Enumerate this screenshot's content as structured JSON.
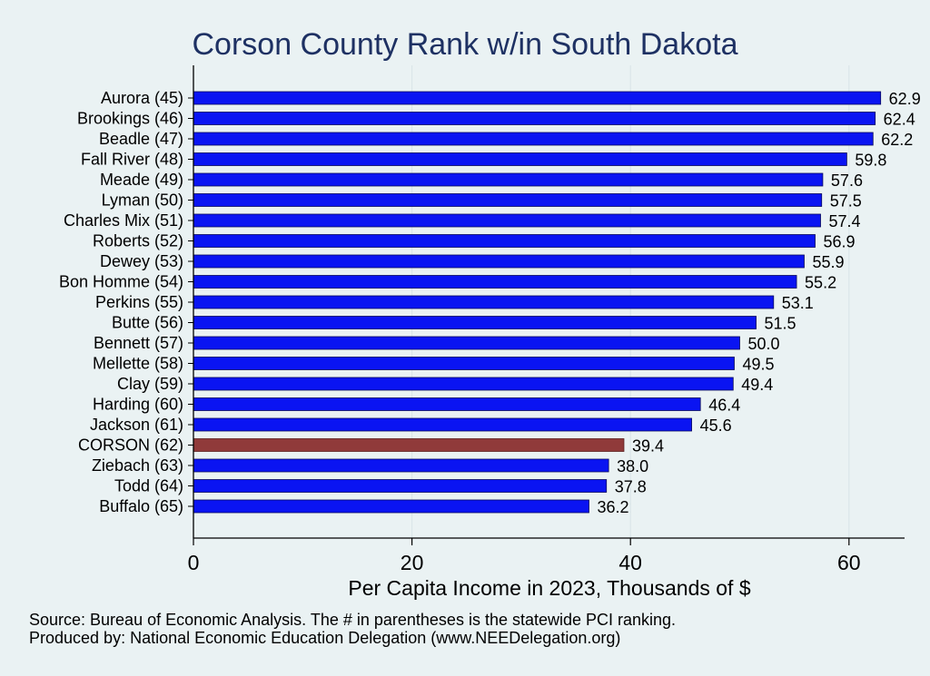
{
  "chart_data": {
    "type": "bar",
    "orientation": "horizontal",
    "title": "Corson County Rank w/in South Dakota",
    "xlabel": "Per Capita Income in 2023, Thousands of $",
    "ylabel": "",
    "xlim": [
      0,
      65
    ],
    "x_ticks": [
      0,
      20,
      40,
      60
    ],
    "grid": true,
    "categories": [
      "Aurora (45)",
      "Brookings (46)",
      "Beadle (47)",
      "Fall River (48)",
      "Meade (49)",
      "Lyman (50)",
      "Charles Mix (51)",
      "Roberts (52)",
      "Dewey (53)",
      "Bon Homme (54)",
      "Perkins (55)",
      "Butte (56)",
      "Bennett (57)",
      "Mellette (58)",
      "Clay (59)",
      "Harding (60)",
      "Jackson (61)",
      "CORSON (62)",
      "Ziebach (63)",
      "Todd (64)",
      "Buffalo (65)"
    ],
    "values": [
      62.9,
      62.4,
      62.2,
      59.8,
      57.6,
      57.5,
      57.4,
      56.9,
      55.9,
      55.2,
      53.1,
      51.5,
      50.0,
      49.5,
      49.4,
      46.4,
      45.6,
      39.4,
      38.0,
      37.8,
      36.2
    ],
    "value_labels": [
      "62.9",
      "62.4",
      "62.2",
      "59.8",
      "57.6",
      "57.5",
      "57.4",
      "56.9",
      "55.9",
      "55.2",
      "53.1",
      "51.5",
      "50.0",
      "49.5",
      "49.4",
      "46.4",
      "45.6",
      "39.4",
      "38.0",
      "37.8",
      "36.2"
    ],
    "highlight_category": "CORSON (62)",
    "colors": {
      "bar": "#0a14f2",
      "highlight": "#903a3a",
      "title": "#1e3163",
      "background": "#eaf2f3",
      "grid": "#dbe6e9"
    }
  },
  "notes": {
    "source": "Source: Bureau of Economic Analysis. The # in parentheses is the statewide PCI ranking.",
    "produced_by": "Produced by: National Economic Education Delegation (www.NEEDelegation.org)"
  }
}
